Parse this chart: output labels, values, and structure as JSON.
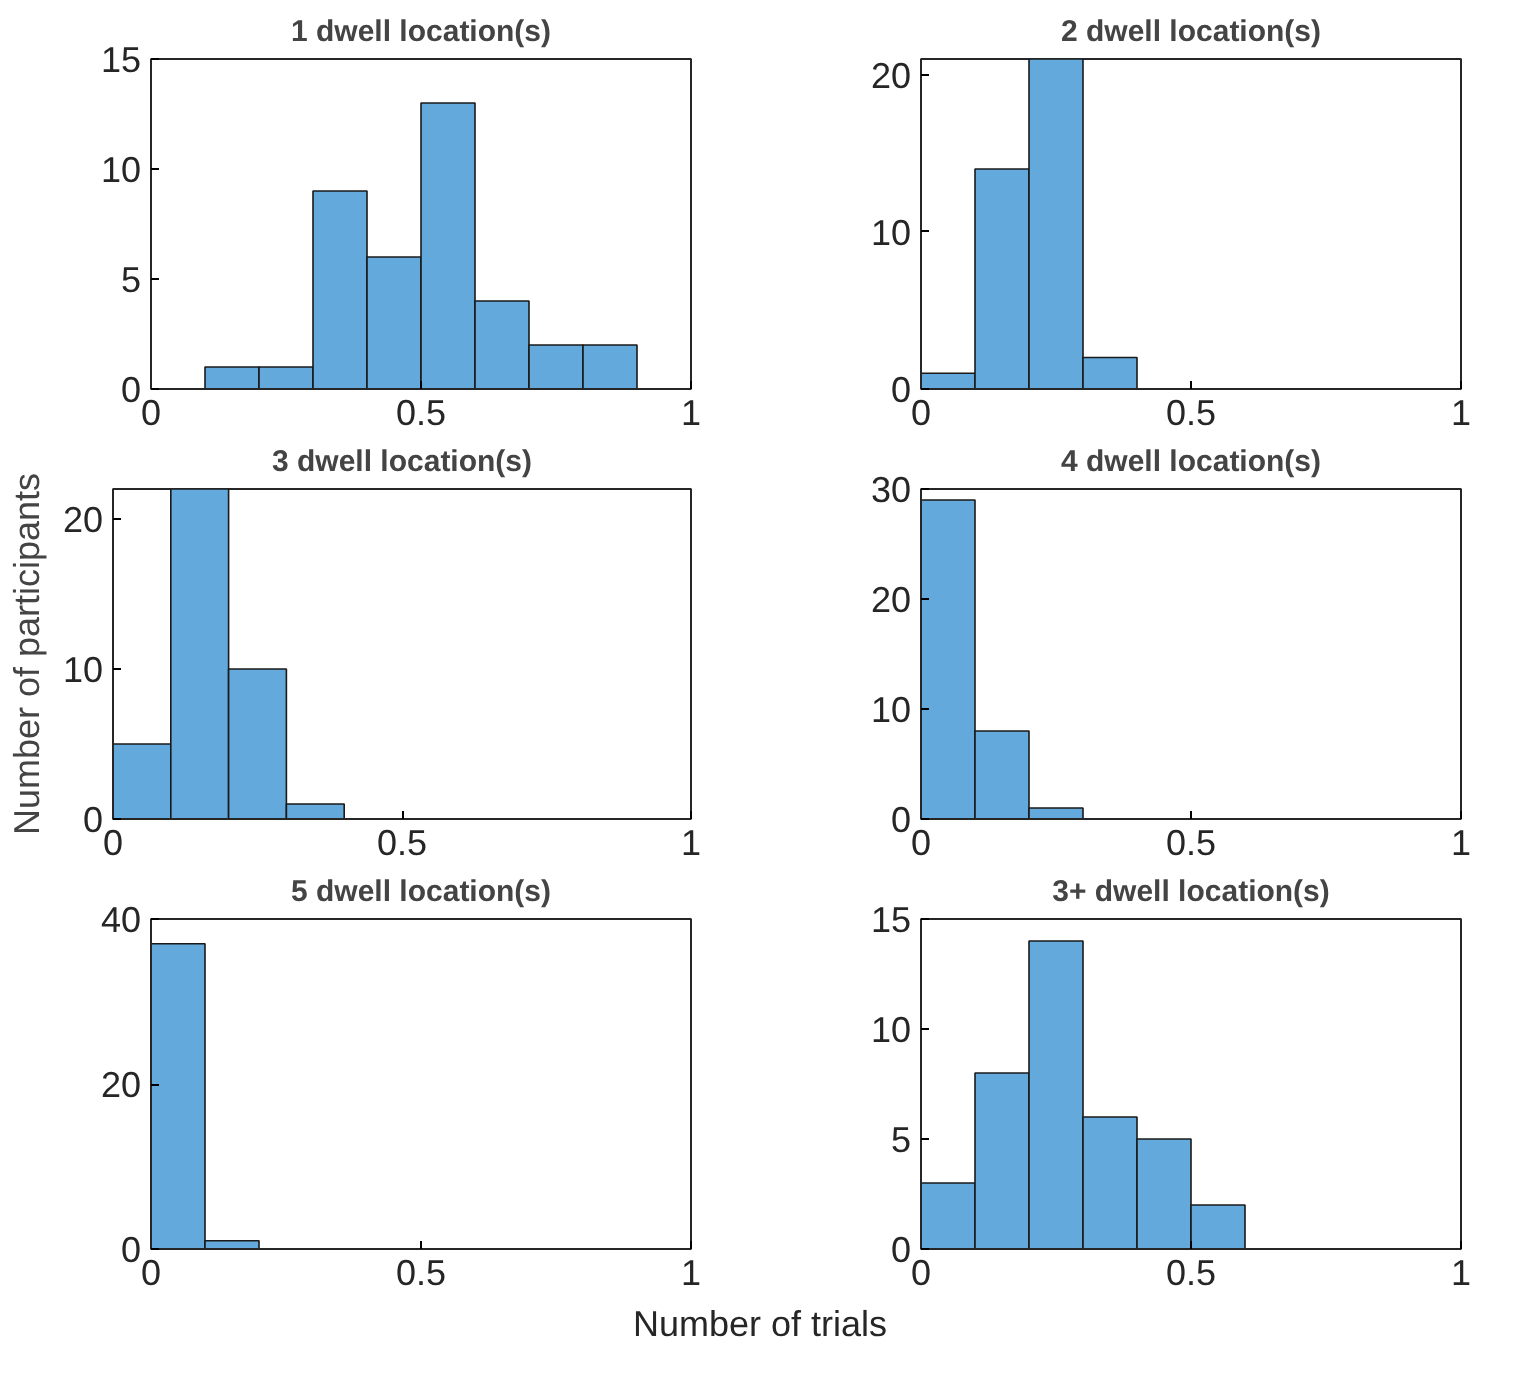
{
  "chart_data": [
    {
      "type": "histogram",
      "title": "1 dwell location(s)",
      "bins": [
        0.1,
        0.2,
        0.3,
        0.4,
        0.5,
        0.6,
        0.7,
        0.8,
        0.9
      ],
      "values": [
        1,
        1,
        9,
        6,
        13,
        4,
        2,
        2
      ],
      "color": "#63a9db",
      "xlim": [
        0,
        1
      ],
      "xticks": [
        0,
        0.5,
        1
      ],
      "ylim": [
        0,
        15
      ],
      "yticks": [
        0,
        5,
        10,
        15
      ],
      "grid": false
    },
    {
      "type": "histogram",
      "title": "2 dwell location(s)",
      "bins": [
        0,
        0.1,
        0.2,
        0.3,
        0.4
      ],
      "values": [
        1,
        14,
        21,
        2
      ],
      "color": "#63a9db",
      "xlim": [
        0,
        1
      ],
      "xticks": [
        0,
        0.5,
        1
      ],
      "ylim": [
        0,
        21
      ],
      "yticks": [
        0,
        10,
        20
      ],
      "grid": false
    },
    {
      "type": "histogram",
      "title": "3 dwell location(s)",
      "ylabel": "Number of participants",
      "bins": [
        0,
        0.1,
        0.2,
        0.3,
        0.4
      ],
      "values": [
        5,
        22,
        10,
        1
      ],
      "color": "#63a9db",
      "xlim": [
        0,
        1
      ],
      "xticks": [
        0,
        0.5,
        1
      ],
      "ylim": [
        0,
        22
      ],
      "yticks": [
        0,
        10,
        20
      ],
      "grid": false
    },
    {
      "type": "histogram",
      "title": "4 dwell location(s)",
      "bins": [
        0,
        0.1,
        0.2,
        0.3
      ],
      "values": [
        29,
        8,
        1
      ],
      "color": "#63a9db",
      "xlim": [
        0,
        1
      ],
      "xticks": [
        0,
        0.5,
        1
      ],
      "ylim": [
        0,
        30
      ],
      "yticks": [
        0,
        10,
        20,
        30
      ],
      "grid": false
    },
    {
      "type": "histogram",
      "title": "5 dwell location(s)",
      "xlabel": "Number of trials",
      "bins": [
        0,
        0.1,
        0.2
      ],
      "values": [
        37,
        1
      ],
      "color": "#63a9db",
      "xlim": [
        0,
        1
      ],
      "xticks": [
        0,
        0.5,
        1
      ],
      "ylim": [
        0,
        40
      ],
      "yticks": [
        0,
        20,
        40
      ],
      "grid": false
    },
    {
      "type": "histogram",
      "title": "3+ dwell location(s)",
      "bins": [
        0,
        0.1,
        0.2,
        0.3,
        0.4,
        0.5,
        0.6
      ],
      "values": [
        3,
        8,
        14,
        6,
        5,
        2
      ],
      "color": "#63a9db",
      "xlim": [
        0,
        1
      ],
      "xticks": [
        0,
        0.5,
        1
      ],
      "ylim": [
        0,
        15
      ],
      "yticks": [
        0,
        5,
        10,
        15
      ],
      "grid": false
    }
  ]
}
